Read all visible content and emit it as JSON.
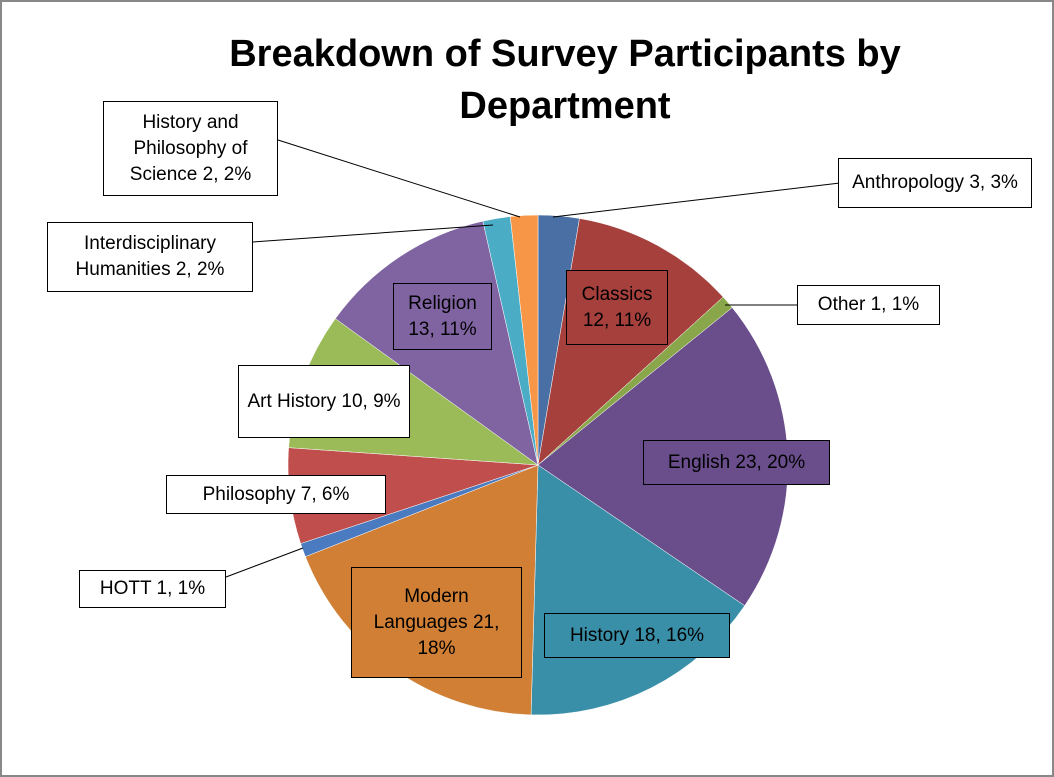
{
  "chart_data": {
    "type": "pie",
    "title": "Breakdown of Survey Participants by Department",
    "values": [
      3,
      12,
      1,
      23,
      18,
      21,
      1,
      7,
      10,
      13,
      2,
      2
    ],
    "value_labels": [
      "Anthropology 3, 3%",
      "Classics 12, 11%",
      "Other 1, 1%",
      "English 23, 20%",
      "History 18, 16%",
      "Modern Languages 21, 18%",
      "HOTT 1, 1%",
      "Philosophy 7, 6%",
      "Art History 10, 9%",
      "Religion 13, 11%",
      "Interdisciplinary Humanities 2, 2%",
      "History and Philosophy of Science 2, 2%"
    ],
    "colors": [
      "#4a6fa5",
      "#a5403c",
      "#8aa64a",
      "#6a4e8c",
      "#3a8fa8",
      "#d07f35",
      "#4a7bc0",
      "#c04e4c",
      "#9bbb59",
      "#8064a2",
      "#4bacc6",
      "#f79646"
    ]
  }
}
